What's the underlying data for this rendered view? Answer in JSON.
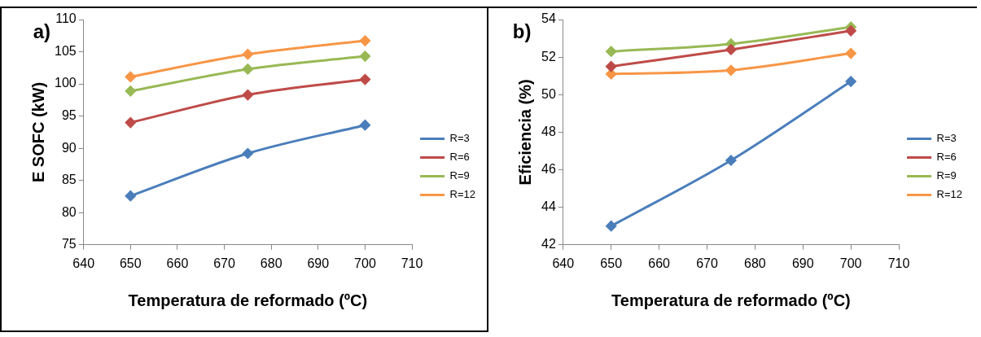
{
  "chart_data": [
    {
      "type": "line",
      "annotations": [
        "a)"
      ],
      "xlabel": "Temperatura de reformado (ºC)",
      "ylabel": "E SOFC (kW)",
      "x": [
        650,
        675,
        700
      ],
      "xlim": [
        640,
        710
      ],
      "xticks": [
        640,
        650,
        660,
        670,
        680,
        690,
        700,
        710
      ],
      "ylim": [
        75,
        110
      ],
      "yticks": [
        75,
        80,
        85,
        90,
        95,
        100,
        105,
        110
      ],
      "grid": false,
      "legend": "right",
      "marker": "diamond",
      "series": [
        {
          "name": "R=3",
          "color": "#4a7ebb",
          "values": [
            82.6,
            89.2,
            93.6
          ]
        },
        {
          "name": "R=6",
          "color": "#be4b48",
          "values": [
            94.0,
            98.3,
            100.7
          ]
        },
        {
          "name": "R=9",
          "color": "#98b954",
          "values": [
            98.9,
            102.3,
            104.3
          ]
        },
        {
          "name": "R=12",
          "color": "#f79646",
          "values": [
            101.1,
            104.6,
            106.7
          ]
        }
      ]
    },
    {
      "type": "line",
      "annotations": [
        "b)"
      ],
      "xlabel": "Temperatura de reformado (ºC)",
      "ylabel": "Eficiencia (%)",
      "x": [
        650,
        675,
        700
      ],
      "xlim": [
        640,
        710
      ],
      "xticks": [
        640,
        650,
        660,
        670,
        680,
        690,
        700,
        710
      ],
      "ylim": [
        42,
        54
      ],
      "yticks": [
        42,
        44,
        46,
        48,
        50,
        52,
        54
      ],
      "grid": false,
      "legend": "right",
      "marker": "diamond",
      "series": [
        {
          "name": "R=3",
          "color": "#4a7ebb",
          "values": [
            43.0,
            46.5,
            50.7
          ]
        },
        {
          "name": "R=6",
          "color": "#be4b48",
          "values": [
            51.5,
            52.4,
            53.4
          ]
        },
        {
          "name": "R=9",
          "color": "#98b954",
          "values": [
            52.3,
            52.7,
            53.6
          ]
        },
        {
          "name": "R=12",
          "color": "#f79646",
          "values": [
            51.1,
            51.3,
            52.2
          ]
        }
      ]
    }
  ]
}
